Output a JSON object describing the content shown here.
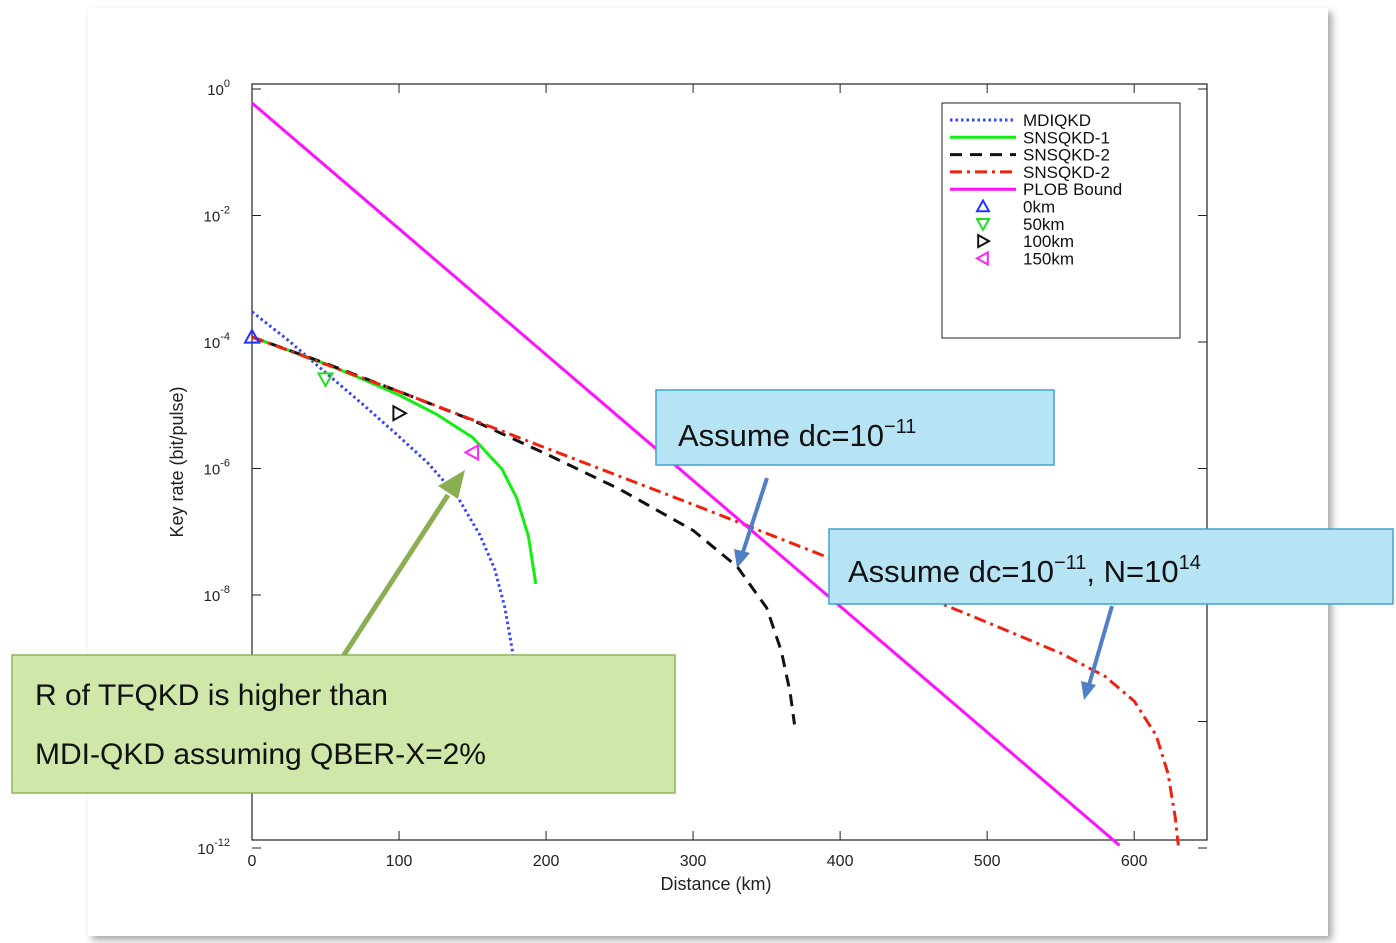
{
  "chart_data": {
    "type": "line",
    "xlabel": "Distance (km)",
    "ylabel": "Key rate (bit/pulse)",
    "xlim": [
      0,
      650
    ],
    "ylim_log10": [
      -12,
      0
    ],
    "y_scale": "log",
    "grid": false,
    "legend_position": "top-right",
    "x_ticks": [
      "0",
      "100",
      "200",
      "300",
      "400",
      "500",
      "600"
    ],
    "y_ticks": [
      {
        "base": "10",
        "exp": "0"
      },
      {
        "base": "10",
        "exp": "-2"
      },
      {
        "base": "10",
        "exp": "-4"
      },
      {
        "base": "10",
        "exp": "-6"
      },
      {
        "base": "10",
        "exp": "-8"
      },
      {
        "base": "10",
        "exp": "-12"
      }
    ],
    "series": [
      {
        "name": "MDIQKD",
        "color": "#3344ff",
        "style": "dotted",
        "x": [
          0,
          25,
          50,
          75,
          100,
          120,
          140,
          155,
          165,
          172,
          178
        ],
        "y": [
          0.0003,
          0.000105,
          3.3e-05,
          1.05e-05,
          3.2e-06,
          1.2e-06,
          3.5e-07,
          8.9e-08,
          2.6e-08,
          6.3e-09,
          1e-09
        ]
      },
      {
        "name": "SNSQKD-1",
        "color": "#11ee11",
        "style": "solid",
        "x": [
          0,
          25,
          50,
          75,
          100,
          125,
          150,
          170,
          180,
          188,
          193
        ],
        "y": [
          0.00012,
          7.4e-05,
          4.5e-05,
          2.6e-05,
          1.45e-05,
          7.3e-06,
          3.1e-06,
          9.8e-07,
          3.4e-07,
          8.5e-08,
          1.5e-08
        ]
      },
      {
        "name": "SNSQKD-2",
        "color": "#111111",
        "style": "dashed",
        "x": [
          0,
          50,
          100,
          150,
          200,
          250,
          300,
          330,
          350,
          360,
          366,
          369
        ],
        "y": [
          0.00012,
          4.6e-05,
          1.65e-05,
          5.8e-06,
          1.7e-06,
          4.7e-07,
          1.05e-07,
          2.8e-08,
          6.3e-09,
          1.3e-09,
          2.9e-10,
          9e-11
        ]
      },
      {
        "name": "SNSQKD-2",
        "color": "#ee2211",
        "style": "dashdot",
        "x": [
          0,
          100,
          200,
          300,
          400,
          500,
          550,
          580,
          600,
          615,
          623,
          628,
          630
        ],
        "y": [
          0.00012,
          1.65e-05,
          2.1e-06,
          2.7e-07,
          3.3e-08,
          3.7e-09,
          1.2e-09,
          5.2e-10,
          2.1e-10,
          6e-11,
          1.5e-11,
          3e-12,
          1.1e-12
        ]
      },
      {
        "name": "PLOB Bound",
        "color": "#ff11ff",
        "style": "solid",
        "x": [
          0,
          590
        ],
        "y": [
          0.6,
          1.1e-12
        ]
      }
    ],
    "markers": [
      {
        "name": "0km",
        "symbol": "triangle-up",
        "color": "#2233ff",
        "x": 0,
        "y": 0.00012
      },
      {
        "name": "50km",
        "symbol": "triangle-down",
        "color": "#22dd22",
        "x": 50,
        "y": 2.6e-05
      },
      {
        "name": "100km",
        "symbol": "triangle-right",
        "color": "#111111",
        "x": 100,
        "y": 7.5e-06
      },
      {
        "name": "150km",
        "symbol": "triangle-left",
        "color": "#ff22ff",
        "x": 150,
        "y": 1.8e-06
      }
    ]
  },
  "annotations": {
    "assume_dc": {
      "text": "Assume dc=",
      "base": "10",
      "exp": "−11"
    },
    "assume_dc_n": {
      "text": "Assume dc=",
      "base": "10",
      "exp": "−11",
      "mid": ", N=",
      "base2": "10",
      "exp2": "14"
    },
    "note_lines": [
      "R of TFQKD is higher than",
      "MDI-QKD assuming QBER-X=2%"
    ]
  },
  "colors": {
    "callout_blue_fill": "#b6e4f5",
    "callout_blue_border": "#3fa3cc",
    "callout_green_fill": "#cfe7a8",
    "callout_green_border": "#8cb55a",
    "arrow_blue": "#4f7fc4",
    "arrow_green": "#8aae52"
  }
}
